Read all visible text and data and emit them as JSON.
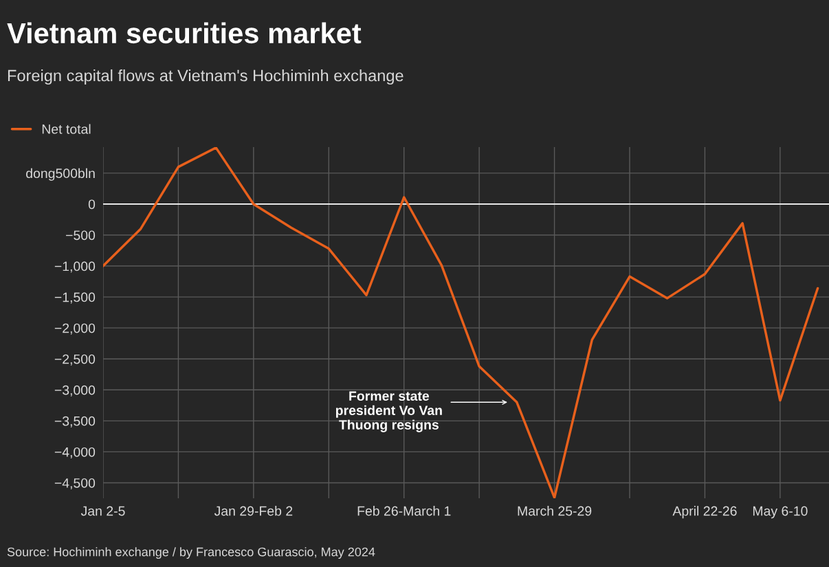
{
  "chart_data": {
    "type": "line",
    "title": "Vietnam securities market",
    "subtitle": "Foreign capital flows at Vietnam's Hochiminh exchange",
    "categories": [
      "Jan 2-5",
      null,
      null,
      null,
      "Jan 29-Feb 2",
      null,
      null,
      null,
      "Feb 26-March 1",
      null,
      null,
      null,
      "March 25-29",
      null,
      null,
      null,
      "April 22-26",
      null,
      "May 6-10",
      null
    ],
    "series": [
      {
        "name": "Net total",
        "color": "#e8601c",
        "values": [
          -1000,
          -400,
          600,
          910,
          0,
          -380,
          -720,
          -1470,
          110,
          -990,
          -2620,
          -3200,
          -4740,
          -2190,
          -1170,
          -1520,
          -1130,
          -310,
          -3170,
          -1360
        ]
      }
    ],
    "ylim": [
      -4750,
      920
    ],
    "yticks": [
      {
        "value": -4500,
        "label": "−4,500"
      },
      {
        "value": -4000,
        "label": "−4,000"
      },
      {
        "value": -3500,
        "label": "−3,500"
      },
      {
        "value": -3000,
        "label": "−3,000"
      },
      {
        "value": -2500,
        "label": "−2,500"
      },
      {
        "value": -2000,
        "label": "−2,000"
      },
      {
        "value": -1500,
        "label": "−1,500"
      },
      {
        "value": -1000,
        "label": "−1,000"
      },
      {
        "value": -500,
        "label": "−500"
      },
      0,
      {
        "value": 500,
        "label": "dong500bln"
      }
    ],
    "ref_lines": [
      {
        "axis": "y",
        "value": 0,
        "color": "#ffffff"
      }
    ],
    "annotations": [
      "Former state\npresident Vo Van\nThuong resigns",
      "Source: Hochiminh exchange / by Francesco Guarascio, May 2024"
    ],
    "grid": true,
    "legend": "top left",
    "marker": "none",
    "line_style": "solid"
  }
}
